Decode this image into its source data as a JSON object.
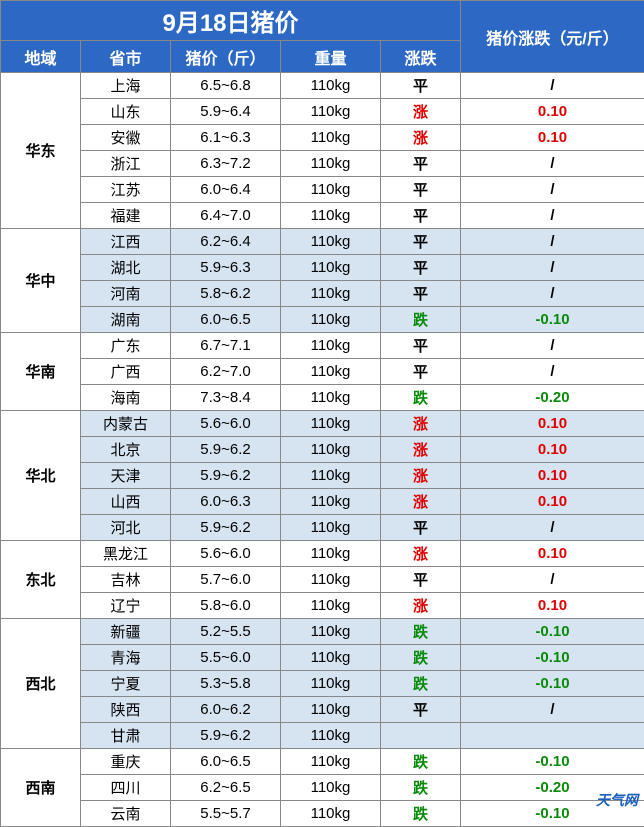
{
  "title": "9月18日猪价",
  "big_header": "猪价涨跌（元/斤）",
  "headers": [
    "地域",
    "省市",
    "猪价（斤）",
    "重量",
    "涨跌"
  ],
  "watermark": "天气网",
  "regions": [
    {
      "name": "华东",
      "shaded": false,
      "rows": [
        {
          "province": "上海",
          "price": "6.5~6.8",
          "weight": "110kg",
          "trend": "平",
          "trend_cls": "flat",
          "change": "/",
          "change_cls": "flat"
        },
        {
          "province": "山东",
          "price": "5.9~6.4",
          "weight": "110kg",
          "trend": "涨",
          "trend_cls": "up",
          "change": "0.10",
          "change_cls": "up"
        },
        {
          "province": "安徽",
          "price": "6.1~6.3",
          "weight": "110kg",
          "trend": "涨",
          "trend_cls": "up",
          "change": "0.10",
          "change_cls": "up"
        },
        {
          "province": "浙江",
          "price": "6.3~7.2",
          "weight": "110kg",
          "trend": "平",
          "trend_cls": "flat",
          "change": "/",
          "change_cls": "flat"
        },
        {
          "province": "江苏",
          "price": "6.0~6.4",
          "weight": "110kg",
          "trend": "平",
          "trend_cls": "flat",
          "change": "/",
          "change_cls": "flat"
        },
        {
          "province": "福建",
          "price": "6.4~7.0",
          "weight": "110kg",
          "trend": "平",
          "trend_cls": "flat",
          "change": "/",
          "change_cls": "flat"
        }
      ]
    },
    {
      "name": "华中",
      "shaded": true,
      "rows": [
        {
          "province": "江西",
          "price": "6.2~6.4",
          "weight": "110kg",
          "trend": "平",
          "trend_cls": "flat",
          "change": "/",
          "change_cls": "flat"
        },
        {
          "province": "湖北",
          "price": "5.9~6.3",
          "weight": "110kg",
          "trend": "平",
          "trend_cls": "flat",
          "change": "/",
          "change_cls": "flat"
        },
        {
          "province": "河南",
          "price": "5.8~6.2",
          "weight": "110kg",
          "trend": "平",
          "trend_cls": "flat",
          "change": "/",
          "change_cls": "flat"
        },
        {
          "province": "湖南",
          "price": "6.0~6.5",
          "weight": "110kg",
          "trend": "跌",
          "trend_cls": "down",
          "change": "-0.10",
          "change_cls": "down"
        }
      ]
    },
    {
      "name": "华南",
      "shaded": false,
      "rows": [
        {
          "province": "广东",
          "price": "6.7~7.1",
          "weight": "110kg",
          "trend": "平",
          "trend_cls": "flat",
          "change": "/",
          "change_cls": "flat"
        },
        {
          "province": "广西",
          "price": "6.2~7.0",
          "weight": "110kg",
          "trend": "平",
          "trend_cls": "flat",
          "change": "/",
          "change_cls": "flat"
        },
        {
          "province": "海南",
          "price": "7.3~8.4",
          "weight": "110kg",
          "trend": "跌",
          "trend_cls": "down",
          "change": "-0.20",
          "change_cls": "down"
        }
      ]
    },
    {
      "name": "华北",
      "shaded": true,
      "rows": [
        {
          "province": "内蒙古",
          "price": "5.6~6.0",
          "weight": "110kg",
          "trend": "涨",
          "trend_cls": "up",
          "change": "0.10",
          "change_cls": "up"
        },
        {
          "province": "北京",
          "price": "5.9~6.2",
          "weight": "110kg",
          "trend": "涨",
          "trend_cls": "up",
          "change": "0.10",
          "change_cls": "up"
        },
        {
          "province": "天津",
          "price": "5.9~6.2",
          "weight": "110kg",
          "trend": "涨",
          "trend_cls": "up",
          "change": "0.10",
          "change_cls": "up"
        },
        {
          "province": "山西",
          "price": "6.0~6.3",
          "weight": "110kg",
          "trend": "涨",
          "trend_cls": "up",
          "change": "0.10",
          "change_cls": "up"
        },
        {
          "province": "河北",
          "price": "5.9~6.2",
          "weight": "110kg",
          "trend": "平",
          "trend_cls": "flat",
          "change": "/",
          "change_cls": "flat"
        }
      ]
    },
    {
      "name": "东北",
      "shaded": false,
      "rows": [
        {
          "province": "黑龙江",
          "price": "5.6~6.0",
          "weight": "110kg",
          "trend": "涨",
          "trend_cls": "up",
          "change": "0.10",
          "change_cls": "up"
        },
        {
          "province": "吉林",
          "price": "5.7~6.0",
          "weight": "110kg",
          "trend": "平",
          "trend_cls": "flat",
          "change": "/",
          "change_cls": "flat"
        },
        {
          "province": "辽宁",
          "price": "5.8~6.0",
          "weight": "110kg",
          "trend": "涨",
          "trend_cls": "up",
          "change": "0.10",
          "change_cls": "up"
        }
      ]
    },
    {
      "name": "西北",
      "shaded": true,
      "rows": [
        {
          "province": "新疆",
          "price": "5.2~5.5",
          "weight": "110kg",
          "trend": "跌",
          "trend_cls": "down",
          "change": "-0.10",
          "change_cls": "down"
        },
        {
          "province": "青海",
          "price": "5.5~6.0",
          "weight": "110kg",
          "trend": "跌",
          "trend_cls": "down",
          "change": "-0.10",
          "change_cls": "down"
        },
        {
          "province": "宁夏",
          "price": "5.3~5.8",
          "weight": "110kg",
          "trend": "跌",
          "trend_cls": "down",
          "change": "-0.10",
          "change_cls": "down"
        },
        {
          "province": "陕西",
          "price": "6.0~6.2",
          "weight": "110kg",
          "trend": "平",
          "trend_cls": "flat",
          "change": "/",
          "change_cls": "flat"
        },
        {
          "province": "甘肃",
          "price": "5.9~6.2",
          "weight": "110kg",
          "trend": "",
          "trend_cls": "flat",
          "change": "",
          "change_cls": "flat"
        }
      ]
    },
    {
      "name": "西南",
      "shaded": false,
      "rows": [
        {
          "province": "重庆",
          "price": "6.0~6.5",
          "weight": "110kg",
          "trend": "跌",
          "trend_cls": "down",
          "change": "-0.10",
          "change_cls": "down"
        },
        {
          "province": "四川",
          "price": "6.2~6.5",
          "weight": "110kg",
          "trend": "跌",
          "trend_cls": "down",
          "change": "-0.20",
          "change_cls": "down"
        },
        {
          "province": "云南",
          "price": "5.5~5.7",
          "weight": "110kg",
          "trend": "跌",
          "trend_cls": "down",
          "change": "-0.10",
          "change_cls": "down"
        }
      ]
    }
  ],
  "col_widths": [
    "80px",
    "90px",
    "110px",
    "100px",
    "80px",
    "184px"
  ]
}
